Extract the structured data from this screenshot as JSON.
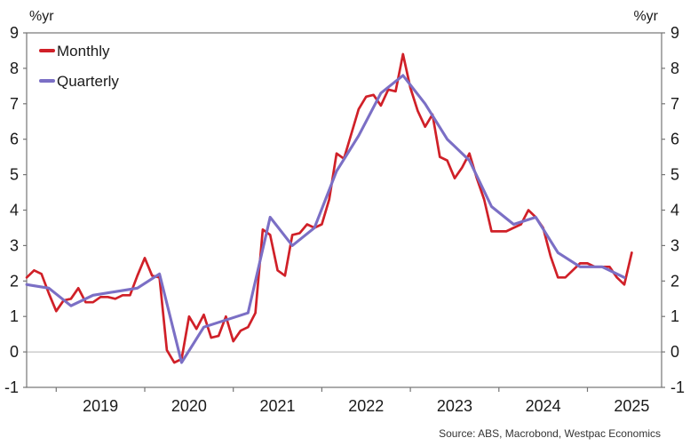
{
  "chart": {
    "unit_left": "%yr",
    "unit_right": "%yr",
    "source": "Source: ABS, Macrobond, Westpac Economics",
    "colors": {
      "monthly": "#d02028",
      "quarterly": "#7b6fc5",
      "frame": "#757575",
      "zero_line": "#b3b3b3",
      "tick_text": "#1a1a1a"
    }
  },
  "legend": {
    "position": "top-left-inside",
    "items": [
      {
        "label": "Monthly",
        "color": "#d02028"
      },
      {
        "label": "Quarterly",
        "color": "#7b6fc5"
      }
    ]
  },
  "chart_data": {
    "type": "line",
    "title": "",
    "xlabel": "",
    "ylabel": "%yr",
    "ylim": [
      -1,
      9
    ],
    "y_ticks": [
      9,
      8,
      7,
      6,
      5,
      4,
      3,
      2,
      1,
      0,
      -1
    ],
    "x_year_labels": [
      "2019",
      "2020",
      "2021",
      "2022",
      "2023",
      "2024",
      "2025"
    ],
    "grid": "zero-line-only",
    "legend_position": "top-left inside plot",
    "series": [
      {
        "name": "Monthly",
        "color": "#d02028",
        "frequency": "monthly",
        "start": "2018-09",
        "end": "2025-07",
        "values": [
          2.1,
          2.3,
          2.2,
          1.65,
          1.15,
          1.45,
          1.5,
          1.8,
          1.4,
          1.4,
          1.55,
          1.55,
          1.5,
          1.6,
          1.6,
          2.15,
          2.65,
          2.15,
          2.1,
          0.05,
          -0.3,
          -0.2,
          1.0,
          0.65,
          1.05,
          0.4,
          0.45,
          1.0,
          0.3,
          0.6,
          0.7,
          1.1,
          3.45,
          3.3,
          2.3,
          2.15,
          3.3,
          3.35,
          3.6,
          3.5,
          3.6,
          4.3,
          5.6,
          5.45,
          6.15,
          6.85,
          7.2,
          7.25,
          6.95,
          7.4,
          7.35,
          8.4,
          7.45,
          6.8,
          6.35,
          6.7,
          5.5,
          5.4,
          4.9,
          5.2,
          5.6,
          4.9,
          4.3,
          3.4,
          3.4,
          3.4,
          3.5,
          3.6,
          4.0,
          3.8,
          3.5,
          2.7,
          2.1,
          2.1,
          2.3,
          2.5,
          2.5,
          2.4,
          2.4,
          2.4,
          2.1,
          1.9,
          2.8
        ]
      },
      {
        "name": "Quarterly",
        "color": "#7b6fc5",
        "frequency": "quarterly",
        "start": "2018-Q3",
        "end": "2025-Q2",
        "values": [
          1.9,
          1.8,
          1.3,
          1.6,
          1.7,
          1.8,
          2.2,
          -0.3,
          0.7,
          0.9,
          1.1,
          3.8,
          3.0,
          3.5,
          5.1,
          6.1,
          7.3,
          7.8,
          7.0,
          6.0,
          5.4,
          4.1,
          3.6,
          3.8,
          2.8,
          2.4,
          2.4,
          2.1
        ]
      }
    ]
  }
}
